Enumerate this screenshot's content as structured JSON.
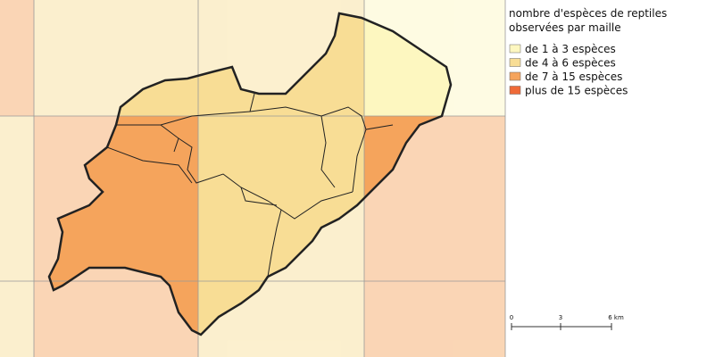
{
  "legend": {
    "title_lines": [
      "nombre d'espèces de reptiles",
      "observées par maille"
    ],
    "items": [
      {
        "label": "de 1 à 3 espèces",
        "color": "#fdf7c0"
      },
      {
        "label": "de 4 à 6 espèces",
        "color": "#f8dd95"
      },
      {
        "label": "de 7 à 15 espèces",
        "color": "#f5a45c"
      },
      {
        "label": "plus de 15 espèces",
        "color": "#ef6a38"
      }
    ]
  },
  "scale_bar": {
    "labels": [
      "0",
      "3",
      "6 km"
    ]
  }
}
